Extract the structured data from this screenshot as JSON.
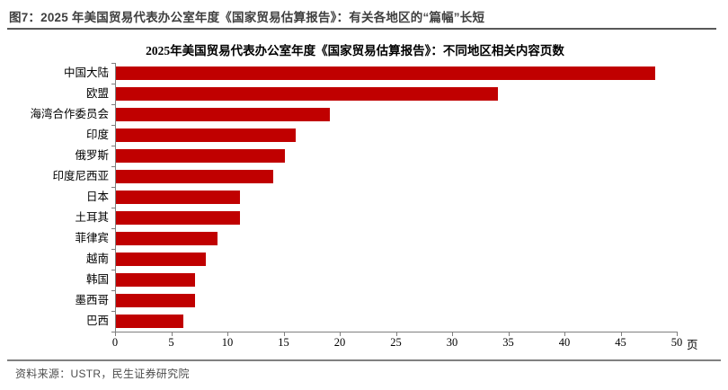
{
  "header": {
    "title": "图7：2025 年美国贸易代表办公室年度《国家贸易估算报告》：有关各地区的“篇幅”长短"
  },
  "footer": {
    "source_label": "资料来源：USTR，民生证券研究院"
  },
  "chart_data": {
    "type": "bar",
    "orientation": "horizontal",
    "title": "2025年美国贸易代表办公室年度《国家贸易估算报告》：不同地区相关内容页数",
    "categories": [
      "中国大陆",
      "欧盟",
      "海湾合作委员会",
      "印度",
      "俄罗斯",
      "印度尼西亚",
      "日本",
      "土耳其",
      "菲律宾",
      "越南",
      "韩国",
      "墨西哥",
      "巴西"
    ],
    "values": [
      48,
      34,
      19,
      16,
      15,
      14,
      11,
      11,
      9,
      8,
      7,
      7,
      6
    ],
    "xlabel": "",
    "ylabel": "",
    "x_unit": "页",
    "xlim": [
      0,
      50
    ],
    "x_ticks": [
      0,
      5,
      10,
      15,
      20,
      25,
      30,
      35,
      40,
      45,
      50
    ],
    "grid": false,
    "legend": "none",
    "bar_color": "#c00000",
    "axis_color": "#7f7f7f"
  }
}
